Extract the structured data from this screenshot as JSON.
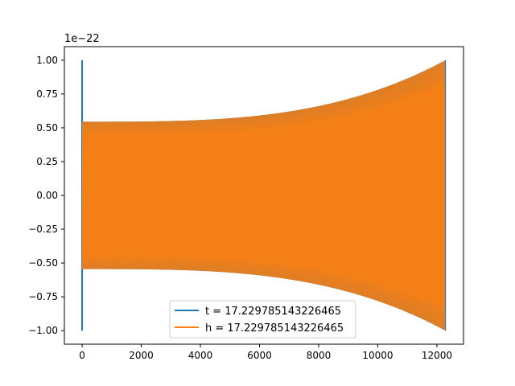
{
  "chart_data": {
    "type": "line",
    "title": "",
    "xlabel": "",
    "ylabel": "",
    "y_offset_label": "1e−22",
    "xlim": [
      -600,
      12900
    ],
    "ylim": [
      -1.1,
      1.1
    ],
    "x_ticks": [
      0,
      2000,
      4000,
      6000,
      8000,
      10000,
      12000
    ],
    "x_tick_labels": [
      "0",
      "2000",
      "4000",
      "6000",
      "8000",
      "10000",
      "12000"
    ],
    "y_ticks": [
      -1.0,
      -0.75,
      -0.5,
      -0.25,
      0.0,
      0.25,
      0.5,
      0.75,
      1.0
    ],
    "y_tick_labels": [
      "−1.00",
      "−0.75",
      "−0.50",
      "−0.25",
      "0.00",
      "0.25",
      "0.50",
      "0.75",
      "1.00"
    ],
    "grid": false,
    "legend_position": "lower-center",
    "series": [
      {
        "name": "t = 17.229785143226465",
        "color": "#1f77b4",
        "x_start": 0,
        "x_end": 12290,
        "start_spike": 1.0,
        "envelope_start": 0.545,
        "envelope_end": 1.0
      },
      {
        "name": "h = 17.229785143226465",
        "color": "#ff7f0e",
        "x_start": 0,
        "x_end": 12290,
        "envelope_start": 0.545,
        "envelope_end": 1.0
      }
    ]
  }
}
